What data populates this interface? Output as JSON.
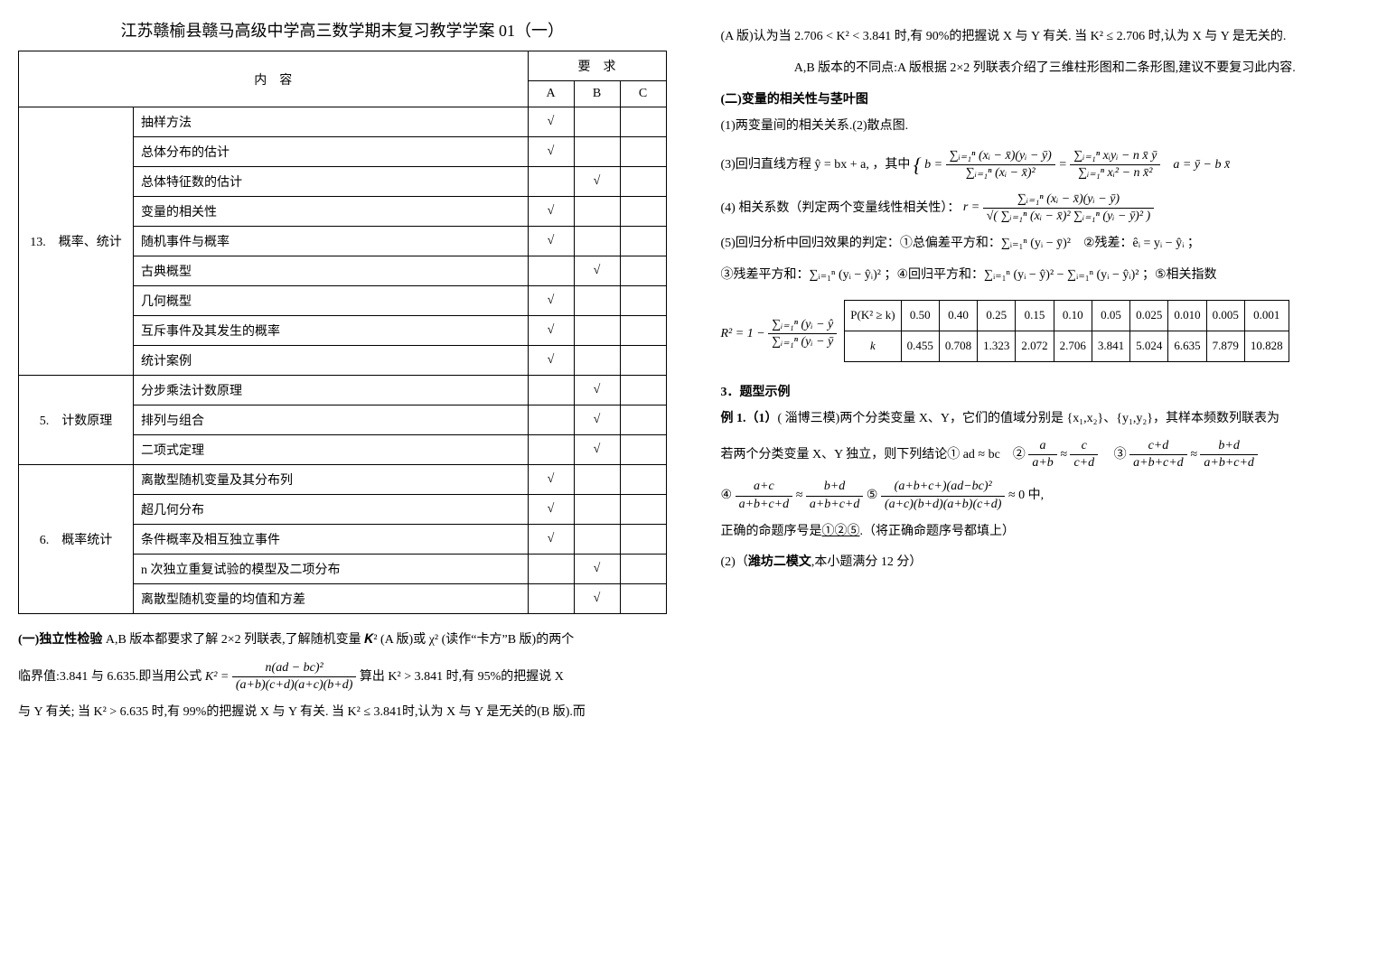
{
  "left": {
    "main_title": "江苏赣榆县赣马高级中学高三数学期末复习教学学案 01（一）",
    "table": {
      "header_content": "内　容",
      "header_req": "要　求",
      "cols": [
        "A",
        "B",
        "C"
      ],
      "groups": [
        {
          "cat": "13.　概率、统计",
          "rows": [
            {
              "name": "抽样方法",
              "a": "√",
              "b": "",
              "c": ""
            },
            {
              "name": "总体分布的估计",
              "a": "√",
              "b": "",
              "c": ""
            },
            {
              "name": "总体特征数的估计",
              "a": "",
              "b": "√",
              "c": ""
            },
            {
              "name": "变量的相关性",
              "a": "√",
              "b": "",
              "c": ""
            },
            {
              "name": "随机事件与概率",
              "a": "√",
              "b": "",
              "c": ""
            },
            {
              "name": "古典概型",
              "a": "",
              "b": "√",
              "c": ""
            },
            {
              "name": "几何概型",
              "a": "√",
              "b": "",
              "c": ""
            },
            {
              "name": "互斥事件及其发生的概率",
              "a": "√",
              "b": "",
              "c": ""
            },
            {
              "name": "统计案例",
              "a": "√",
              "b": "",
              "c": ""
            }
          ]
        },
        {
          "cat": "5.　计数原理",
          "rows": [
            {
              "name": "分步乘法计数原理",
              "a": "",
              "b": "√",
              "c": ""
            },
            {
              "name": "排列与组合",
              "a": "",
              "b": "√",
              "c": ""
            },
            {
              "name": "二项式定理",
              "a": "",
              "b": "√",
              "c": ""
            }
          ]
        },
        {
          "cat": "6.　概率统计",
          "rows": [
            {
              "name": "离散型随机变量及其分布列",
              "a": "√",
              "b": "",
              "c": ""
            },
            {
              "name": "超几何分布",
              "a": "√",
              "b": "",
              "c": ""
            },
            {
              "name": "条件概率及相互独立事件",
              "a": "√",
              "b": "",
              "c": ""
            },
            {
              "name": "n 次独立重复试验的模型及二项分布",
              "a": "",
              "b": "√",
              "c": ""
            },
            {
              "name": "离散型随机变量的均值和方差",
              "a": "",
              "b": "√",
              "c": ""
            }
          ]
        }
      ]
    },
    "p1_label": "(一)独立性检验",
    "p1_text": " A,B 版本都要求了解 2×2 列联表,了解随机变量 𝑲² (A 版)或 χ² (读作“卡方”B 版)的两个",
    "p2_pre": "临界值:3.841 与 6.635.即当用公式 ",
    "p2_formula_lhs": "K² =",
    "p2_num": "n(ad − bc)²",
    "p2_den": "(a+b)(c+d)(a+c)(b+d)",
    "p2_post": " 算出 K² > 3.841 时,有 95%的把握说 X",
    "p3": "与 Y 有关; 当 K² > 6.635 时,有 99%的把握说 X 与 Y 有关. 当 K² ≤ 3.841时,认为 X 与 Y 是无关的(B 版).而"
  },
  "right": {
    "p1": "(A 版)认为当 2.706 < K² < 3.841 时,有 90%的把握说 X 与 Y 有关.  当 K² ≤ 2.706 时,认为 X 与 Y 是无关的.",
    "p2": "A,B 版本的不同点:A 版根据 2×2 列联表介绍了三维柱形图和二条形图,建议不要复习此内容.",
    "sec1": "(二)变量的相关性与茎叶图",
    "p3": "(1)两变量间的相关关系.(2)散点图.",
    "p4_pre": "(3)回归直线方程 ŷ = bx + a, ，其中",
    "f3_b_num1": "∑ᵢ₌₁ⁿ (xᵢ − x̄)(yᵢ − ȳ)",
    "f3_b_den1": "∑ᵢ₌₁ⁿ (xᵢ − x̄)²",
    "f3_b_num2": "∑ᵢ₌₁ⁿ xᵢyᵢ − n x̄ ȳ",
    "f3_b_den2": "∑ᵢ₌₁ⁿ xᵢ² − n x̄²",
    "f3_a": "a = ȳ − b x̄",
    "p5_pre": "(4) 相关系数（判定两个变量线性相关性）：",
    "f4_num": "∑ᵢ₌₁ⁿ (xᵢ − x̄)(yᵢ − ȳ)",
    "f4_den": "√( ∑ᵢ₌₁ⁿ (xᵢ − x̄)² ∑ᵢ₌₁ⁿ (yᵢ − ȳ)² )",
    "p6": "(5)回归分析中回归效果的判定：①总偏差平方和：∑ᵢ₌₁ⁿ (yᵢ − ȳ)²　②残差：êᵢ = yᵢ − ŷᵢ ；",
    "p7": "③残差平方和：∑ᵢ₌₁ⁿ (yᵢ − ŷᵢ)² ；④回归平方和：∑ᵢ₌₁ⁿ (yᵢ − ŷ)² − ∑ᵢ₌₁ⁿ (yᵢ − ŷᵢ)² ；⑤相关指数",
    "r2_lhs_num": "∑ᵢ₌₁ⁿ (yᵢ − ŷ",
    "r2_lhs_den": "∑ᵢ₌₁ⁿ (yᵢ − ȳ",
    "pk_table": {
      "row1_label": "P(K² ≥ k)",
      "row1": [
        "0.50",
        "0.40",
        "0.25",
        "0.15",
        "0.10",
        "0.05",
        "0.025",
        "0.010",
        "0.005",
        "0.001"
      ],
      "row2_label": "k",
      "row2": [
        "0.455",
        "0.708",
        "1.323",
        "2.072",
        "2.706",
        "3.841",
        "5.024",
        "6.635",
        "7.879",
        "10.828"
      ]
    },
    "sec2": "3．题型示例",
    "ex1_label": "例 1.（1）",
    "ex1_text": "( 淄博三模)两个分类变量 X、Y，它们的值域分别是 {x₁,x₂}、{y₁,y₂}，其样本频数列联表为",
    "ex1_line_a": "若两个分类变量 X、Y 独立，则下列结论① ad ≈ bc　②",
    "ex1_f2a": "a",
    "ex1_f2b": "a+b",
    "ex1_f2c": "c",
    "ex1_f2d": "c+d",
    "ex1_between23": "　③",
    "ex1_f3a": "c+d",
    "ex1_f3b": "a+b+c+d",
    "ex1_f3c": "b+d",
    "ex1_f3d": "a+b+c+d",
    "ex1_line_b_pre": "④",
    "ex1_f4a": "a+c",
    "ex1_f4b": "a+b+c+d",
    "ex1_f4c": "b+d",
    "ex1_f4d": "a+b+c+d",
    "ex1_between45": "⑤",
    "ex1_f5a": "(a+b+c+)(ad−bc)²",
    "ex1_f5b": "(a+c)(b+d)(a+b)(c+d)",
    "ex1_f5_tail": " ≈ 0 中,",
    "ex1_ans_pre": "正确的命题序号是",
    "ex1_ans_und": "①②⑤",
    "ex1_ans_post": ".（将正确命题序号都填上）",
    "ex2": "(2)（潍坊二模文,本小题满分 12 分）"
  }
}
